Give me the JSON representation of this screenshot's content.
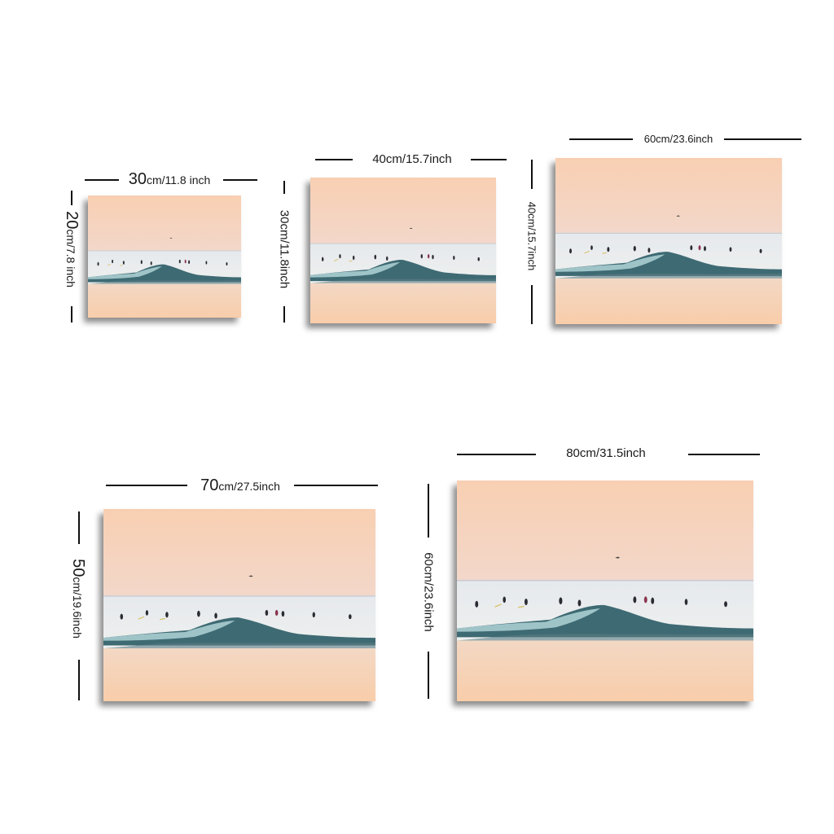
{
  "sizes": [
    {
      "width_big": "30",
      "width_rest": "cm/11.8 inch",
      "height_big": "20",
      "height_rest": "cm/7.8 inch"
    },
    {
      "width_label": "40cm/15.7inch",
      "height_label": "30cm/11.8inch"
    },
    {
      "width_label": "60cm/23.6inch",
      "height_label": "40cm/15.7inch"
    },
    {
      "width_big": "70",
      "width_rest": "cm/27.5inch",
      "height_big": "50",
      "height_rest": "cm/19.6inch"
    },
    {
      "width_label": "80cm/31.5inch",
      "height_label": "60cm/23.6inch"
    }
  ],
  "colors": {
    "sky_top": "#f7d2b6",
    "sky_bottom": "#dcdde4",
    "sea": "#e9ecee",
    "wave": "#3f6e76",
    "sand": "#f6d3b8",
    "ink": "#111111"
  }
}
